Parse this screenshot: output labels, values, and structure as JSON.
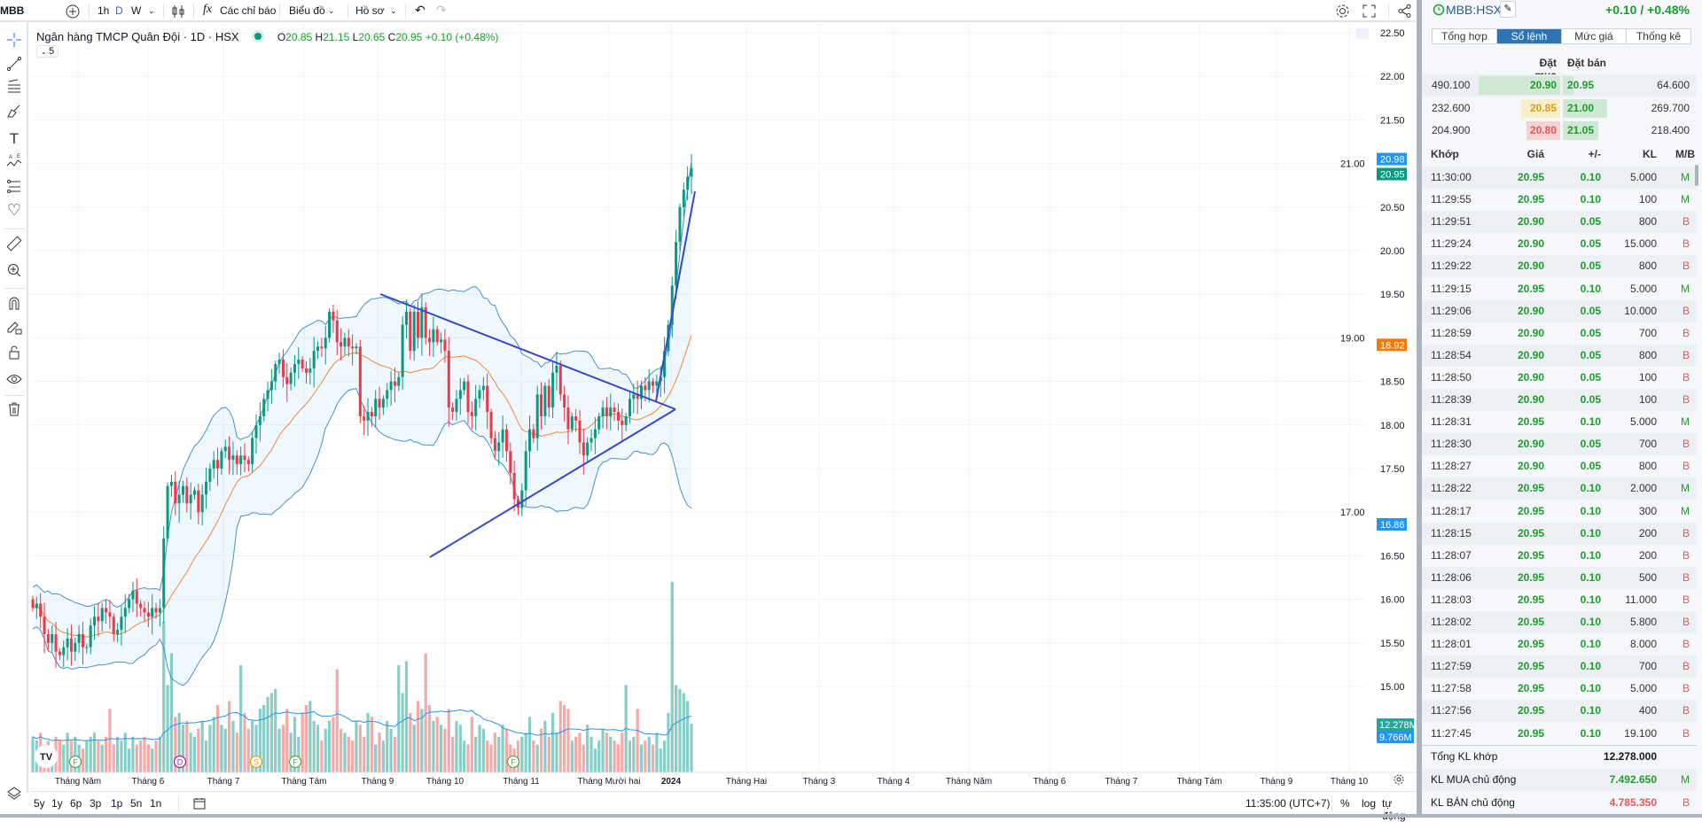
{
  "toolbar": {
    "symbol": "MBB",
    "intervals": [
      "1h",
      "D",
      "W"
    ],
    "active_interval": "D",
    "indicators_label": "Các chỉ báo",
    "chart_label": "Biểu đồ",
    "profile_label": "Hồ sơ"
  },
  "legend": {
    "title": "Ngân hàng TMCP Quân Đội · 1D · HSX",
    "o_label": "O",
    "o": "20.85",
    "h_label": "H",
    "h": "21.15",
    "l_label": "L",
    "l": "20.65",
    "c_label": "C",
    "c": "20.95",
    "change": "+0.10 (+0.48%)",
    "collapse_count": "5"
  },
  "price_axis": {
    "labels": [
      "22.50",
      "22.00",
      "21.50",
      "21.00",
      "20.50",
      "20.00",
      "19.50",
      "19.00",
      "18.50",
      "18.00",
      "17.50",
      "17.00",
      "16.50",
      "16.00",
      "15.50",
      "15.00"
    ],
    "badges": [
      {
        "text": "20.98",
        "value": 20.98,
        "color": "#2196f3"
      },
      {
        "text": "20.95",
        "value": 20.95,
        "color": "#089981"
      },
      {
        "text": "18.92",
        "value": 18.92,
        "color": "#f57c00"
      },
      {
        "text": "16.86",
        "value": 16.86,
        "color": "#2196f3"
      }
    ],
    "volume_badges": [
      {
        "text": "12.278M",
        "color": "#26a69a"
      },
      {
        "text": "9.766M",
        "color": "#2196f3"
      }
    ]
  },
  "time_axis": {
    "labels": [
      "Tháng Năm",
      "Tháng 6",
      "Tháng 7",
      "Tháng Tám",
      "Tháng 9",
      "Tháng 10",
      "Tháng 11",
      "Tháng Mười hai",
      "2024",
      "Tháng Hai",
      "Tháng 3",
      "Tháng 4",
      "Tháng Năm",
      "Tháng 6",
      "Tháng 7",
      "Tháng Tám",
      "Tháng 9",
      "Tháng 10"
    ]
  },
  "events": [
    {
      "letter": "F",
      "color": "#4caf50"
    },
    {
      "letter": "D",
      "color": "#9c27b0"
    },
    {
      "letter": "S",
      "color": "#ff9800"
    },
    {
      "letter": "F",
      "color": "#4caf50"
    },
    {
      "letter": "F",
      "color": "#4caf50"
    }
  ],
  "bottombar": {
    "ranges": [
      "5y",
      "1y",
      "6p",
      "3p",
      "1p",
      "5n",
      "1n"
    ],
    "time": "11:35:00 (UTC+7)",
    "percent": "%",
    "log": "log",
    "auto": "tự động"
  },
  "chart_data": {
    "type": "candlestick",
    "indicators": [
      "Bollinger Bands (20, 2)",
      "SMA 20",
      "Volume",
      "Volume MA"
    ],
    "ylim": [
      15.0,
      22.5
    ],
    "colors": {
      "up": "#089981",
      "down": "#f23645",
      "bb": "#4a8fc9",
      "ma": "#f0883a"
    },
    "close": [
      15.9,
      15.95,
      15.8,
      15.6,
      15.5,
      15.6,
      15.4,
      15.36,
      15.45,
      15.55,
      15.4,
      15.5,
      15.6,
      15.45,
      15.45,
      15.7,
      15.8,
      15.75,
      15.9,
      15.85,
      15.8,
      15.6,
      15.65,
      15.8,
      15.9,
      16.0,
      16.1,
      15.95,
      15.9,
      15.85,
      15.8,
      15.9,
      15.85,
      15.9,
      16.7,
      17.3,
      17.35,
      17.1,
      17.2,
      17.3,
      17.1,
      17.2,
      17.25,
      17.0,
      17.2,
      17.35,
      17.5,
      17.6,
      17.5,
      17.7,
      17.75,
      17.6,
      17.65,
      17.55,
      17.65,
      17.6,
      17.55,
      17.85,
      18.0,
      18.1,
      18.3,
      18.4,
      18.5,
      18.7,
      18.75,
      18.55,
      18.47,
      18.6,
      18.7,
      18.75,
      18.65,
      18.6,
      18.65,
      18.85,
      18.9,
      18.88,
      19.0,
      19.3,
      19.2,
      18.95,
      18.9,
      19.0,
      18.9,
      18.88,
      18.9,
      18.1,
      18.05,
      18.15,
      18.1,
      18.3,
      18.2,
      18.3,
      18.4,
      18.5,
      18.45,
      18.55,
      19.15,
      19.3,
      18.85,
      19.3,
      19.0,
      19.35,
      19.0,
      18.95,
      19.1,
      18.95,
      18.98,
      18.85,
      18.2,
      18.15,
      18.3,
      18.4,
      18.5,
      18.15,
      18.1,
      18.3,
      18.4,
      18.45,
      18.15,
      17.85,
      17.7,
      17.8,
      17.95,
      17.7,
      17.45,
      17.15,
      17.05,
      17.25,
      17.7,
      17.95,
      17.85,
      18.35,
      18.1,
      18.45,
      18.2,
      18.6,
      18.68,
      18.35,
      18.2,
      17.95,
      18.1,
      18.05,
      17.8,
      17.65,
      17.8,
      17.85,
      17.95,
      18.1,
      18.2,
      18.1,
      18.2,
      18.15,
      18.05,
      18.0,
      18.1,
      18.3,
      18.35,
      18.3,
      18.45,
      18.4,
      18.5,
      18.45,
      18.5,
      18.55,
      18.85,
      19.15,
      19.6,
      20.1,
      20.5,
      20.7,
      20.85,
      20.95
    ],
    "volume_millions": [
      9,
      8,
      10,
      7,
      8,
      6,
      9,
      8,
      7,
      10,
      8,
      9,
      7,
      6,
      8,
      9,
      10,
      8,
      7,
      9,
      16,
      7,
      9,
      8,
      10,
      6,
      9,
      7,
      8,
      9,
      7,
      6,
      8,
      9,
      38,
      22,
      30,
      14,
      15,
      12,
      13,
      10,
      9,
      11,
      13,
      8,
      12,
      14,
      17,
      12,
      11,
      18,
      13,
      10,
      27,
      15,
      11,
      13,
      12,
      16,
      17,
      19,
      20,
      21,
      11,
      12,
      16,
      10,
      14,
      9,
      15,
      17,
      18,
      13,
      12,
      8,
      11,
      13,
      14,
      26,
      11,
      10,
      9,
      8,
      13,
      12,
      9,
      15,
      14,
      7,
      10,
      8,
      13,
      11,
      9,
      27,
      20,
      28,
      15,
      12,
      18,
      16,
      30,
      17,
      13,
      14,
      12,
      11,
      16,
      9,
      13,
      12,
      8,
      7,
      14,
      9,
      12,
      11,
      8,
      7,
      10,
      9,
      12,
      11,
      7,
      6,
      8,
      9,
      10,
      14,
      8,
      7,
      11,
      13,
      9,
      15,
      10,
      18,
      17,
      16,
      8,
      9,
      10,
      7,
      12,
      9,
      6,
      8,
      11,
      10,
      9,
      8,
      7,
      10,
      22,
      8,
      9,
      16,
      7,
      8,
      9,
      7,
      10,
      6,
      8,
      15,
      48,
      22,
      21,
      20,
      18,
      12.278
    ]
  },
  "panel": {
    "symbol": "MBB:HSX",
    "change": "+0.10 / +0.48%",
    "tabs": [
      "Tổng hợp",
      "Sổ lệnh",
      "Mức giá",
      "Thống kê"
    ],
    "active_tab": 1,
    "ob_headers": {
      "bid": "Đặt mua",
      "ask": "Đặt bán"
    },
    "orderbook": [
      {
        "bid_vol": "490.100",
        "bid_vol_n": 490.1,
        "bid": "20.90",
        "bid_state": "up",
        "ask": "20.95",
        "ask_vol": "64.600",
        "ask_vol_n": 64.6
      },
      {
        "bid_vol": "232.600",
        "bid_vol_n": 232.6,
        "bid": "20.85",
        "bid_state": "ref",
        "ask": "21.00",
        "ask_vol": "269.700",
        "ask_vol_n": 269.7
      },
      {
        "bid_vol": "204.900",
        "bid_vol_n": 204.9,
        "bid": "20.80",
        "bid_state": "down",
        "ask": "21.05",
        "ask_vol": "218.400",
        "ask_vol_n": 218.4
      }
    ],
    "trade_headers": {
      "time": "Khớp",
      "price": "Giá",
      "change": "+/-",
      "vol": "KL",
      "side": "M/B"
    },
    "trades": [
      [
        "11:30:00",
        "20.95",
        "0.10",
        "5.000",
        "M"
      ],
      [
        "11:29:55",
        "20.95",
        "0.10",
        "100",
        "M"
      ],
      [
        "11:29:51",
        "20.90",
        "0.05",
        "800",
        "B"
      ],
      [
        "11:29:24",
        "20.90",
        "0.05",
        "15.000",
        "B"
      ],
      [
        "11:29:22",
        "20.90",
        "0.05",
        "800",
        "B"
      ],
      [
        "11:29:15",
        "20.95",
        "0.10",
        "5.000",
        "M"
      ],
      [
        "11:29:06",
        "20.90",
        "0.05",
        "10.000",
        "B"
      ],
      [
        "11:28:59",
        "20.90",
        "0.05",
        "700",
        "B"
      ],
      [
        "11:28:54",
        "20.90",
        "0.05",
        "800",
        "B"
      ],
      [
        "11:28:50",
        "20.90",
        "0.05",
        "100",
        "B"
      ],
      [
        "11:28:39",
        "20.90",
        "0.05",
        "100",
        "B"
      ],
      [
        "11:28:31",
        "20.95",
        "0.10",
        "5.000",
        "M"
      ],
      [
        "11:28:30",
        "20.90",
        "0.05",
        "700",
        "B"
      ],
      [
        "11:28:27",
        "20.90",
        "0.05",
        "800",
        "B"
      ],
      [
        "11:28:22",
        "20.95",
        "0.10",
        "2.000",
        "M"
      ],
      [
        "11:28:17",
        "20.95",
        "0.10",
        "300",
        "M"
      ],
      [
        "11:28:15",
        "20.95",
        "0.10",
        "200",
        "B"
      ],
      [
        "11:28:07",
        "20.95",
        "0.10",
        "200",
        "B"
      ],
      [
        "11:28:06",
        "20.95",
        "0.10",
        "500",
        "B"
      ],
      [
        "11:28:03",
        "20.95",
        "0.10",
        "11.000",
        "B"
      ],
      [
        "11:28:02",
        "20.95",
        "0.10",
        "5.800",
        "B"
      ],
      [
        "11:28:01",
        "20.95",
        "0.10",
        "8.000",
        "B"
      ],
      [
        "11:27:59",
        "20.95",
        "0.10",
        "700",
        "B"
      ],
      [
        "11:27:58",
        "20.95",
        "0.10",
        "5.000",
        "B"
      ],
      [
        "11:27:56",
        "20.95",
        "0.10",
        "400",
        "B"
      ],
      [
        "11:27:45",
        "20.95",
        "0.10",
        "19.100",
        "B"
      ]
    ],
    "summary": {
      "total_label": "Tổng KL khớp",
      "total": "12.278.000",
      "buy_label": "KL MUA chủ động",
      "buy": "7.492.650",
      "buy_side": "M",
      "sell_label": "KL BÁN chủ động",
      "sell": "4.785.350",
      "sell_side": "B"
    }
  }
}
